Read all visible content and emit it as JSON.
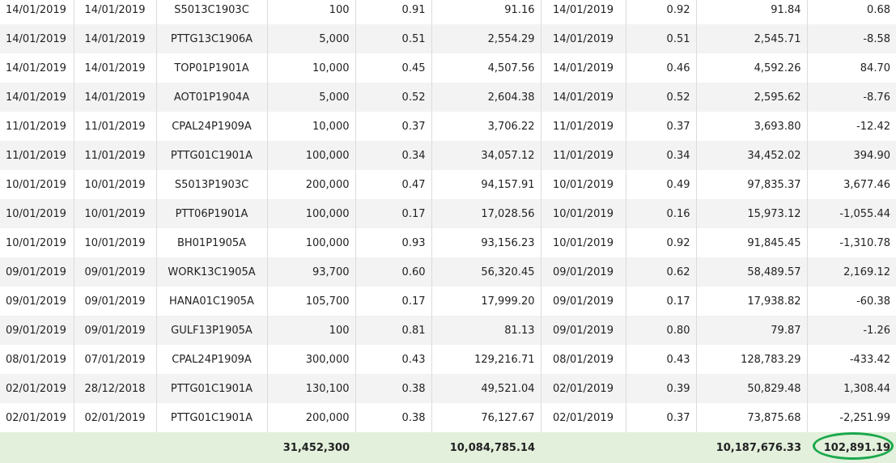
{
  "rows": [
    [
      "14/01/2019",
      "14/01/2019",
      "S5013C1903C",
      "100",
      "0.91",
      "91.16",
      "14/01/2019",
      "0.92",
      "91.84",
      "0.68"
    ],
    [
      "14/01/2019",
      "14/01/2019",
      "PTTG13C1906A",
      "5,000",
      "0.51",
      "2,554.29",
      "14/01/2019",
      "0.51",
      "2,545.71",
      "-8.58"
    ],
    [
      "14/01/2019",
      "14/01/2019",
      "TOP01P1901A",
      "10,000",
      "0.45",
      "4,507.56",
      "14/01/2019",
      "0.46",
      "4,592.26",
      "84.70"
    ],
    [
      "14/01/2019",
      "14/01/2019",
      "AOT01P1904A",
      "5,000",
      "0.52",
      "2,604.38",
      "14/01/2019",
      "0.52",
      "2,595.62",
      "-8.76"
    ],
    [
      "11/01/2019",
      "11/01/2019",
      "CPAL24P1909A",
      "10,000",
      "0.37",
      "3,706.22",
      "11/01/2019",
      "0.37",
      "3,693.80",
      "-12.42"
    ],
    [
      "11/01/2019",
      "11/01/2019",
      "PTTG01C1901A",
      "100,000",
      "0.34",
      "34,057.12",
      "11/01/2019",
      "0.34",
      "34,452.02",
      "394.90"
    ],
    [
      "10/01/2019",
      "10/01/2019",
      "S5013P1903C",
      "200,000",
      "0.47",
      "94,157.91",
      "10/01/2019",
      "0.49",
      "97,835.37",
      "3,677.46"
    ],
    [
      "10/01/2019",
      "10/01/2019",
      "PTT06P1901A",
      "100,000",
      "0.17",
      "17,028.56",
      "10/01/2019",
      "0.16",
      "15,973.12",
      "-1,055.44"
    ],
    [
      "10/01/2019",
      "10/01/2019",
      "BH01P1905A",
      "100,000",
      "0.93",
      "93,156.23",
      "10/01/2019",
      "0.92",
      "91,845.45",
      "-1,310.78"
    ],
    [
      "09/01/2019",
      "09/01/2019",
      "WORK13C1905A",
      "93,700",
      "0.60",
      "56,320.45",
      "09/01/2019",
      "0.62",
      "58,489.57",
      "2,169.12"
    ],
    [
      "09/01/2019",
      "09/01/2019",
      "HANA01C1905A",
      "105,700",
      "0.17",
      "17,999.20",
      "09/01/2019",
      "0.17",
      "17,938.82",
      "-60.38"
    ],
    [
      "09/01/2019",
      "09/01/2019",
      "GULF13P1905A",
      "100",
      "0.81",
      "81.13",
      "09/01/2019",
      "0.80",
      "79.87",
      "-1.26"
    ],
    [
      "08/01/2019",
      "07/01/2019",
      "CPAL24P1909A",
      "300,000",
      "0.43",
      "129,216.71",
      "08/01/2019",
      "0.43",
      "128,783.29",
      "-433.42"
    ],
    [
      "02/01/2019",
      "28/12/2018",
      "PTTG01C1901A",
      "130,100",
      "0.38",
      "49,521.04",
      "02/01/2019",
      "0.39",
      "50,829.48",
      "1,308.44"
    ],
    [
      "02/01/2019",
      "02/01/2019",
      "PTTG01C1901A",
      "200,000",
      "0.38",
      "76,127.67",
      "02/01/2019",
      "0.37",
      "73,875.68",
      "-2,251.99"
    ]
  ],
  "totals": {
    "quantity": "31,452,300",
    "buy_amount": "10,084,785.14",
    "sell_amount": "10,187,676.33",
    "profit": "102,891.19"
  },
  "colors": {
    "total_row_bg": "#e2f0dc",
    "highlight_circle": "#1aa84a",
    "stripe": "#f3f3f3"
  }
}
